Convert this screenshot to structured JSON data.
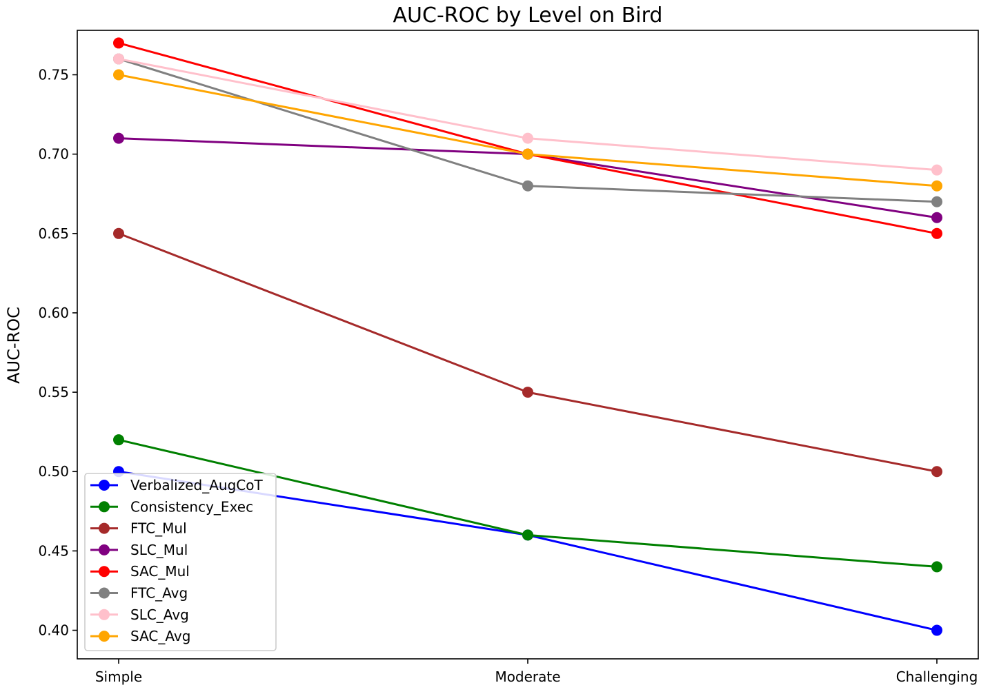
{
  "chart_data": {
    "type": "line",
    "title": "AUC-ROC by Level on Bird",
    "xlabel": "",
    "ylabel": "AUC-ROC",
    "categories": [
      "Simple",
      "Moderate",
      "Challenging"
    ],
    "ylim": [
      0.382,
      0.778
    ],
    "yticks": [
      0.4,
      0.45,
      0.5,
      0.55,
      0.6,
      0.65,
      0.7,
      0.75
    ],
    "ytick_labels": [
      "0.40",
      "0.45",
      "0.50",
      "0.55",
      "0.60",
      "0.65",
      "0.70",
      "0.75"
    ],
    "grid": false,
    "legend_position": "lower-left",
    "series": [
      {
        "name": "Verbalized_AugCoT",
        "color": "#0000ff",
        "values": [
          0.5,
          0.46,
          0.4
        ]
      },
      {
        "name": "Consistency_Exec",
        "color": "#008000",
        "values": [
          0.52,
          0.46,
          0.44
        ]
      },
      {
        "name": "FTC_Mul",
        "color": "#a52a2a",
        "values": [
          0.65,
          0.55,
          0.5
        ]
      },
      {
        "name": "SLC_Mul",
        "color": "#800080",
        "values": [
          0.71,
          0.7,
          0.66
        ]
      },
      {
        "name": "SAC_Mul",
        "color": "#ff0000",
        "values": [
          0.77,
          0.7,
          0.65
        ]
      },
      {
        "name": "FTC_Avg",
        "color": "#808080",
        "values": [
          0.76,
          0.68,
          0.67
        ]
      },
      {
        "name": "SLC_Avg",
        "color": "#ffc0cb",
        "values": [
          0.76,
          0.71,
          0.69
        ]
      },
      {
        "name": "SAC_Avg",
        "color": "#ffa500",
        "values": [
          0.75,
          0.7,
          0.68
        ]
      }
    ]
  }
}
